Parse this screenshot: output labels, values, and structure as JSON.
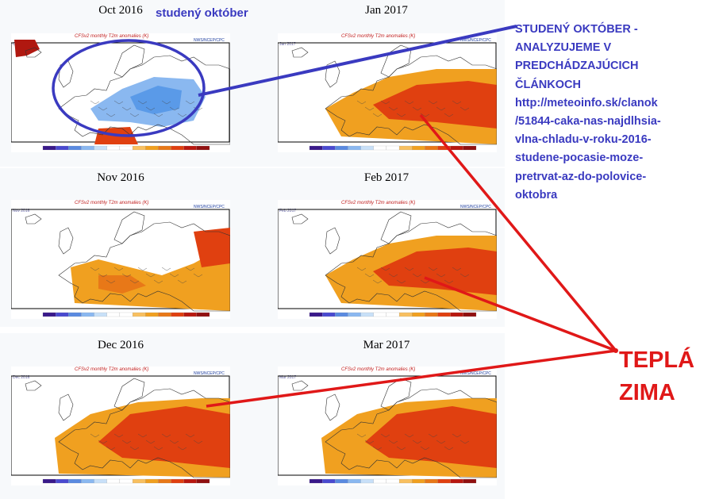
{
  "panels": [
    {
      "month": "Oct 2016",
      "tag": "Oct 2016",
      "pattern": "cold"
    },
    {
      "month": "Jan 2017",
      "tag": "Jan 2017",
      "pattern": "warm"
    },
    {
      "month": "Nov 2016",
      "tag": "Nov 2016",
      "pattern": "mild"
    },
    {
      "month": "Feb 2017",
      "tag": "Feb 2017",
      "pattern": "warm"
    },
    {
      "month": "Dec 2016",
      "tag": "Dec 2016",
      "pattern": "hot"
    },
    {
      "month": "Mar 2017",
      "tag": "Mar 2017",
      "pattern": "hot"
    }
  ],
  "map_title": "CFSv2 monthly T2m anomalies (K)",
  "agency": "NWS/NCEP/CPC",
  "colorbar": [
    "#3a1a8a",
    "#4a4ad0",
    "#5a8ae0",
    "#8ab8f0",
    "#c8e0f8",
    "#ffffff",
    "#ffffff",
    "#f8c060",
    "#f0a020",
    "#e87818",
    "#e04010",
    "#b81810",
    "#901010"
  ],
  "annotations": {
    "cold_label": "studený október",
    "note_lines": [
      "STUDENÝ OKTÓBER -",
      "ANALYZUJEME V",
      "PREDCHÁDZAJÚCICH",
      "ČLÁNKOCH",
      "http://meteoinfo.sk/clanok",
      "/51844-caka-nas-najdlhsia-",
      "vlna-chladu-v-roku-2016-",
      "studene-pocasie-moze-",
      "pretrvat-az-do-polovice-",
      "oktobra"
    ],
    "warm_line1": "TEPLÁ",
    "warm_line2": "ZIMA"
  },
  "colors": {
    "blue_annotation": "#3a3ac0",
    "red_annotation": "#e01818",
    "warm": "#f0a020",
    "hot": "#e04010",
    "cold": "#5a9ae8"
  }
}
